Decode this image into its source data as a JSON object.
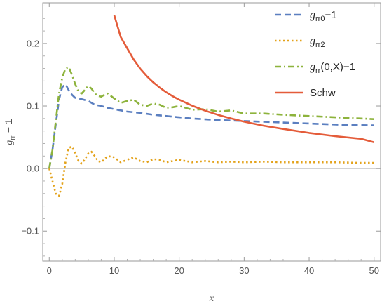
{
  "chart_data": {
    "type": "line",
    "title": "",
    "xlabel": "x",
    "ylabel": "g_rr − 1",
    "xlim": [
      -1,
      51
    ],
    "ylim": [
      -0.148,
      0.265
    ],
    "xticks": [
      0,
      10,
      20,
      30,
      40,
      50
    ],
    "yticks": [
      -0.1,
      0.0,
      0.1,
      0.2
    ],
    "xtick_labels": [
      "0",
      "10",
      "20",
      "30",
      "40",
      "50"
    ],
    "ytick_labels": [
      "−0.1",
      "0.0",
      "0.1",
      "0.2"
    ],
    "grid": false,
    "zero_line": true,
    "legend_position": "top-right",
    "series": [
      {
        "name": "g_rr0 − 1",
        "legend_main": "g",
        "legend_sub": "rr0",
        "legend_tail": "−1",
        "color": "#5b7fc0",
        "dash": "9,5",
        "x": [
          0,
          0.5,
          1,
          1.5,
          2,
          2.5,
          3,
          3.5,
          4,
          4.5,
          5,
          6,
          7,
          8,
          9,
          10,
          12,
          14,
          16,
          18,
          20,
          22,
          25,
          30,
          35,
          40,
          45,
          50
        ],
        "y": [
          0.0,
          0.03,
          0.07,
          0.11,
          0.13,
          0.135,
          0.125,
          0.118,
          0.113,
          0.112,
          0.111,
          0.108,
          0.102,
          0.1,
          0.097,
          0.095,
          0.091,
          0.089,
          0.086,
          0.084,
          0.082,
          0.08,
          0.078,
          0.076,
          0.074,
          0.072,
          0.07,
          0.069
        ]
      },
      {
        "name": "g_rr2",
        "legend_main": "g",
        "legend_sub": "rr2",
        "legend_tail": "",
        "color": "#e3a21a",
        "dash": "2.5,3.5",
        "x": [
          0,
          0.5,
          1,
          1.5,
          2,
          2.5,
          3,
          3.5,
          4,
          4.5,
          5,
          5.5,
          6,
          6.5,
          7,
          7.5,
          8,
          8.5,
          9,
          10,
          11,
          12,
          13,
          14,
          15,
          16,
          17,
          18,
          19,
          20,
          22,
          24,
          26,
          28,
          30,
          33,
          36,
          40,
          44,
          48,
          50
        ],
        "y": [
          0.0,
          -0.02,
          -0.04,
          -0.044,
          -0.025,
          0.01,
          0.033,
          0.035,
          0.025,
          0.012,
          0.008,
          0.015,
          0.024,
          0.027,
          0.02,
          0.012,
          0.01,
          0.015,
          0.02,
          0.018,
          0.01,
          0.014,
          0.018,
          0.012,
          0.01,
          0.015,
          0.014,
          0.01,
          0.012,
          0.014,
          0.01,
          0.012,
          0.01,
          0.011,
          0.01,
          0.011,
          0.01,
          0.01,
          0.01,
          0.009,
          0.009
        ]
      },
      {
        "name": "g_rr(0,X) − 1",
        "legend_main": "g",
        "legend_sub": "rr",
        "legend_tail": "(0,X)−1",
        "color": "#8db33c",
        "dash": "9,4,2,4",
        "x": [
          0,
          0.5,
          1,
          1.5,
          2,
          2.5,
          3,
          3.5,
          4,
          4.5,
          5,
          5.5,
          6,
          6.5,
          7,
          7.5,
          8,
          8.5,
          9,
          10,
          11,
          12,
          13,
          14,
          15,
          16,
          17,
          18,
          19,
          20,
          22,
          24,
          26,
          28,
          30,
          33,
          36,
          40,
          44,
          48,
          50
        ],
        "y": [
          0.0,
          0.03,
          0.075,
          0.12,
          0.145,
          0.16,
          0.162,
          0.15,
          0.135,
          0.123,
          0.12,
          0.126,
          0.132,
          0.128,
          0.12,
          0.116,
          0.115,
          0.118,
          0.12,
          0.112,
          0.105,
          0.108,
          0.11,
          0.102,
          0.1,
          0.104,
          0.102,
          0.097,
          0.098,
          0.1,
          0.094,
          0.095,
          0.091,
          0.093,
          0.088,
          0.088,
          0.086,
          0.084,
          0.082,
          0.08,
          0.079
        ]
      },
      {
        "name": "Schw",
        "legend_main": "Schw",
        "legend_sub": "",
        "legend_tail": "",
        "color": "#e45c3a",
        "dash": "",
        "x": [
          10,
          11,
          12,
          13,
          14,
          15,
          16,
          17,
          18,
          19,
          20,
          22,
          24,
          26,
          28,
          30,
          33,
          36,
          40,
          44,
          48,
          50
        ],
        "y": [
          0.245,
          0.2105,
          0.1923,
          0.1742,
          0.1597,
          0.1478,
          0.1379,
          0.1294,
          0.122,
          0.1156,
          0.11,
          0.1005,
          0.0925,
          0.0858,
          0.08,
          0.0749,
          0.0685,
          0.0633,
          0.0569,
          0.0518,
          0.0475,
          0.042
        ]
      }
    ]
  }
}
